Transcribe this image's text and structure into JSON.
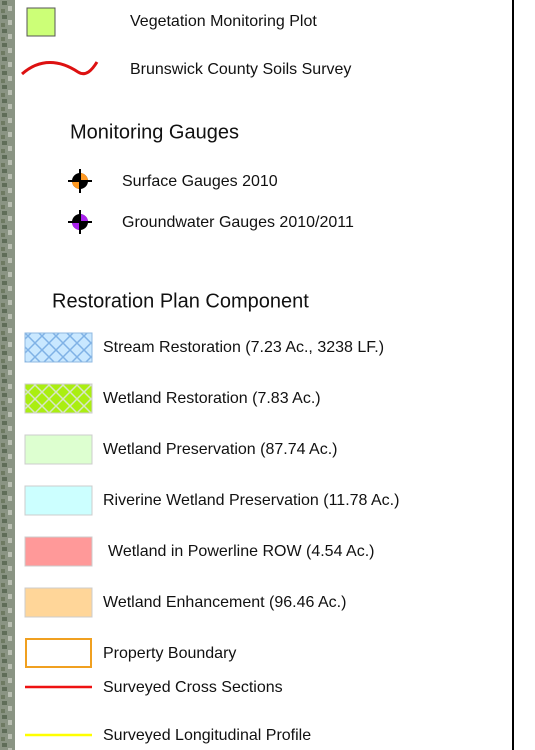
{
  "legend": {
    "top_items": [
      {
        "label": "Vegetation Monitoring Plot"
      },
      {
        "label": "Brunswick County Soils Survey"
      }
    ],
    "gauges": {
      "title": "Monitoring Gauges",
      "items": [
        {
          "label": "Surface Gauges 2010"
        },
        {
          "label": "Groundwater Gauges 2010/2011"
        }
      ]
    },
    "components": {
      "title": "Restoration Plan Component",
      "items": [
        {
          "label": "Stream Restoration (7.23 Ac., 3238 LF.)"
        },
        {
          "label": "Wetland Restoration (7.83 Ac.)"
        },
        {
          "label": "Wetland Preservation (87.74 Ac.)"
        },
        {
          "label": "Riverine Wetland Preservation (11.78 Ac.)"
        },
        {
          "label": "Wetland in Powerline ROW (4.54 Ac.)"
        },
        {
          "label": "Wetland Enhancement (96.46 Ac.)"
        },
        {
          "label": "Property Boundary"
        },
        {
          "label": "Surveyed Cross Sections"
        },
        {
          "label": "Surveyed Longitudinal Profile"
        }
      ]
    }
  }
}
